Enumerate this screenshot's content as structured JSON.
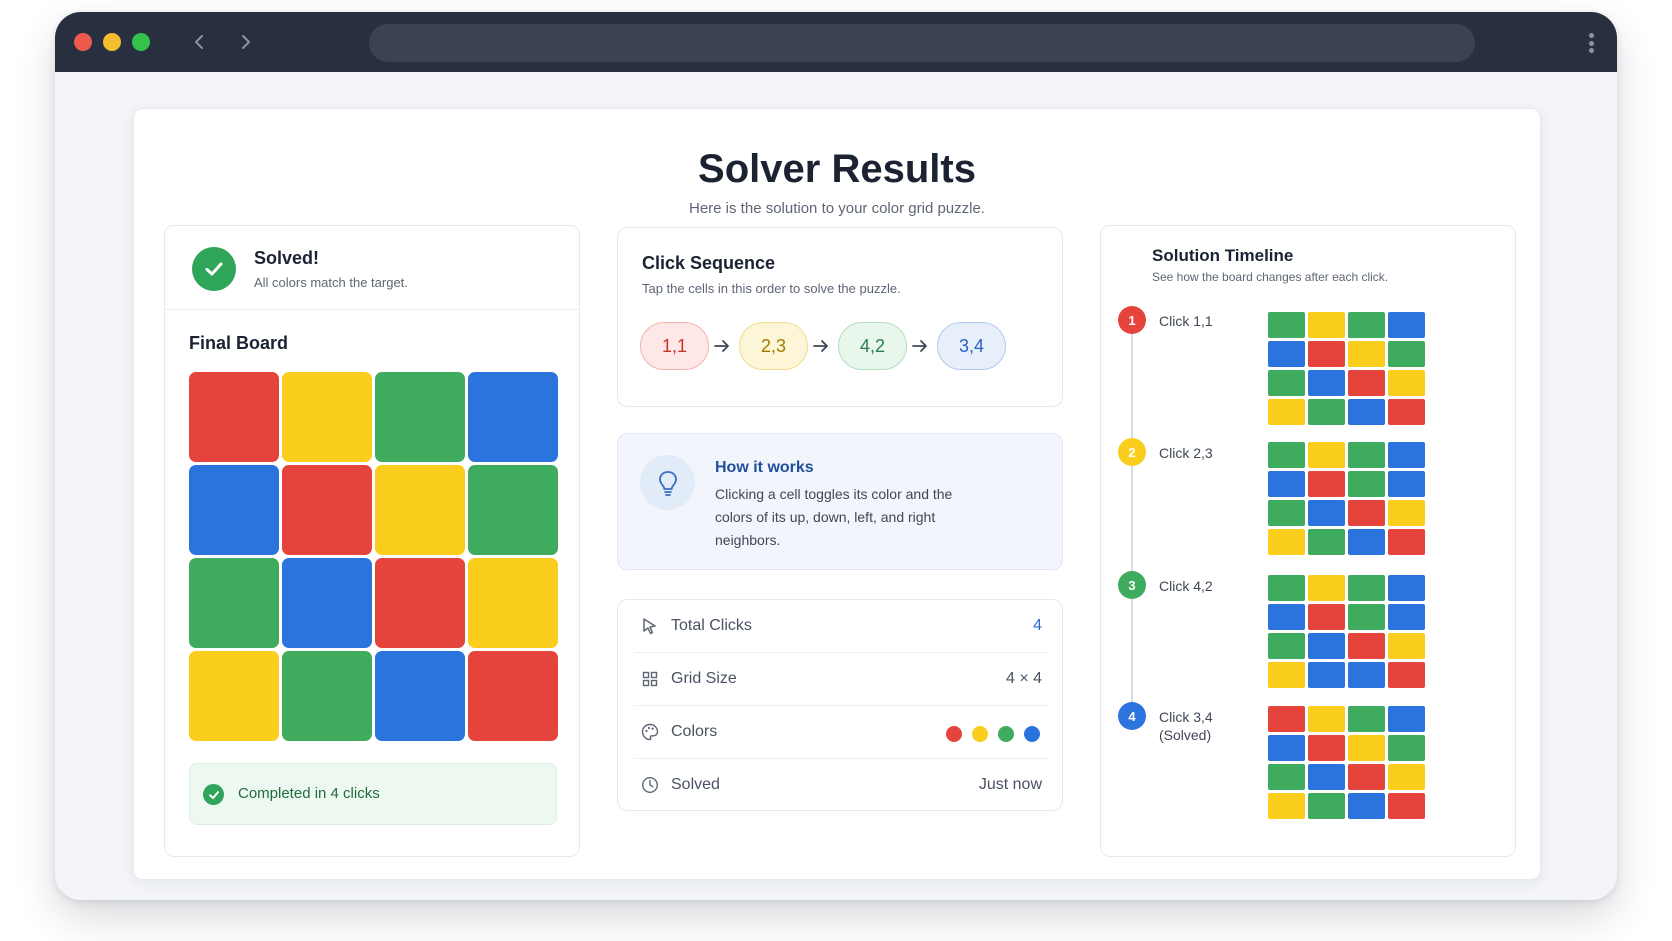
{
  "colors": {
    "R": "#e5443c",
    "Y": "#fbcd1d",
    "G": "#3fab5e",
    "B": "#2b74dd"
  },
  "page": {
    "title": "Solver Results",
    "subtitle": "Here is the solution to your color grid puzzle."
  },
  "solved": {
    "title": "Solved!",
    "subtitle": "All colors match the target."
  },
  "final_board": {
    "label": "Final Board",
    "grid": [
      "RYGB",
      "BRYG",
      "GBRY",
      "YGBR"
    ]
  },
  "completed_text": "Completed in 4 clicks",
  "sequence": {
    "title": "Click Sequence",
    "subtitle": "Tap the cells in this order to solve the puzzle.",
    "steps": [
      "1,1",
      "2,3",
      "4,2",
      "3,4"
    ]
  },
  "how": {
    "title": "How it works",
    "text": "Clicking a cell toggles its color and the colors of its up, down, left, and right neighbors."
  },
  "stats": {
    "total_clicks_label": "Total Clicks",
    "total_clicks_value": "4",
    "grid_size_label": "Grid Size",
    "grid_size_value": "4 × 4",
    "colors_label": "Colors",
    "solved_label": "Solved",
    "solved_value": "Just now"
  },
  "timeline": {
    "title": "Solution Timeline",
    "subtitle": "See how the board changes after each click.",
    "steps": [
      {
        "num": "1",
        "label": "Click 1,1",
        "grid": [
          "GYGB",
          "BRYG",
          "GBRY",
          "YGBR"
        ]
      },
      {
        "num": "2",
        "label": "Click 2,3",
        "grid": [
          "GYGB",
          "BRGB",
          "GBRY",
          "YGBR"
        ]
      },
      {
        "num": "3",
        "label": "Click 4,2",
        "grid": [
          "GYGB",
          "BRGB",
          "GBRY",
          "YBBR"
        ]
      },
      {
        "num": "4",
        "label": "Click 3,4",
        "label2": "(Solved)",
        "grid": [
          "RYGB",
          "BRYG",
          "GBRY",
          "YGBR"
        ]
      }
    ]
  }
}
